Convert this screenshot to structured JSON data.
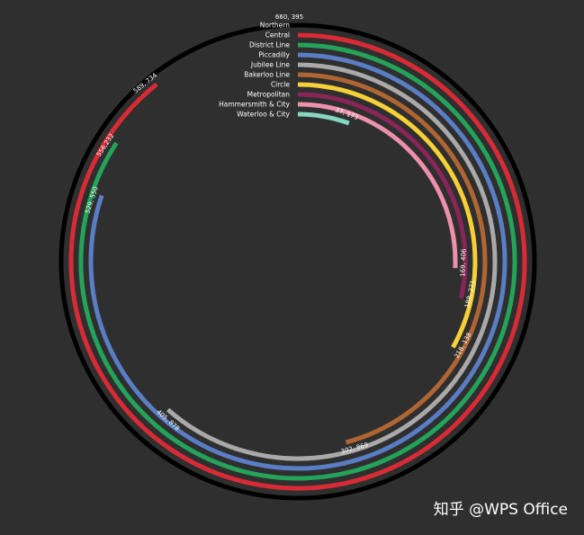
{
  "chart_data": {
    "type": "radial-bar",
    "max": 660395,
    "series": [
      {
        "name": "Northern",
        "value": 660395,
        "label": "660, 395",
        "color": "#000000"
      },
      {
        "name": "Central",
        "value": 589734,
        "label": "589, 734",
        "color": "#d92b36"
      },
      {
        "name": "District Line",
        "value": 556232,
        "label": "556,232",
        "color": "#24a35a"
      },
      {
        "name": "Piccadilly",
        "value": 529550,
        "label": "529, 550",
        "color": "#5a7ec5"
      },
      {
        "name": "Jubilee Line",
        "value": 405878,
        "label": "405, 878",
        "color": "#a9a9a9"
      },
      {
        "name": "Bakerloo Line",
        "value": 302869,
        "label": "302, 869",
        "color": "#b06633"
      },
      {
        "name": "Circle",
        "value": 218138,
        "label": "218, 138",
        "color": "#f7d038"
      },
      {
        "name": "Metropolitan",
        "value": 188271,
        "label": "188, 271",
        "color": "#8a2559"
      },
      {
        "name": "Hammersmith & City",
        "value": 169406,
        "label": "169, 406",
        "color": "#ee8fac"
      },
      {
        "name": "Waterloo & City",
        "value": 37173,
        "label": "37, 173",
        "color": "#85d7bf"
      }
    ]
  },
  "watermark": "知乎 @WPS Office"
}
